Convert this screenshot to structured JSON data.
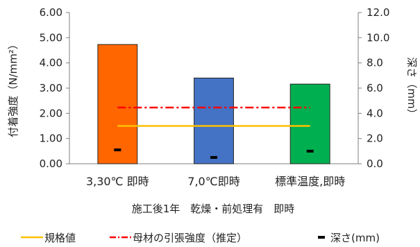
{
  "chart_data": {
    "type": "bar",
    "subtitle": "施工後1年　乾燥・前処理有　即時",
    "categories": [
      "3,30℃ 即時",
      "7,0℃即時",
      "標準温度,即時"
    ],
    "ylabel": "付着強度（N/mm²）",
    "ylim": [
      0,
      6
    ],
    "yticks": [
      "0.00",
      "1.00",
      "2.00",
      "3.00",
      "4.00",
      "5.00",
      "6.00"
    ],
    "y2label": "深さ（mm）",
    "y2lim": [
      0,
      12
    ],
    "y2ticks": [
      "0.0",
      "2.0",
      "4.0",
      "6.0",
      "8.0",
      "10.0",
      "12.0"
    ],
    "grid": false,
    "legend_position": "bottom",
    "series": [
      {
        "type": "bar",
        "axis": "left",
        "values": [
          4.73,
          3.4,
          3.16
        ],
        "colors": [
          "#ff6600",
          "#4472c4",
          "#00b050"
        ]
      },
      {
        "name": "規格値",
        "type": "line",
        "axis": "left",
        "values": [
          1.5,
          1.5,
          1.5
        ],
        "color": "#ffc000",
        "style": "solid"
      },
      {
        "name": "母材の引張強度（推定）",
        "type": "line",
        "axis": "left",
        "values": [
          2.23,
          2.23,
          2.23
        ],
        "color": "#ff0000",
        "style": "dash-dot"
      },
      {
        "name": "深さ(mm)",
        "type": "marker",
        "axis": "right",
        "values": [
          1.1,
          0.5,
          1.0
        ],
        "color": "#000000"
      }
    ]
  }
}
